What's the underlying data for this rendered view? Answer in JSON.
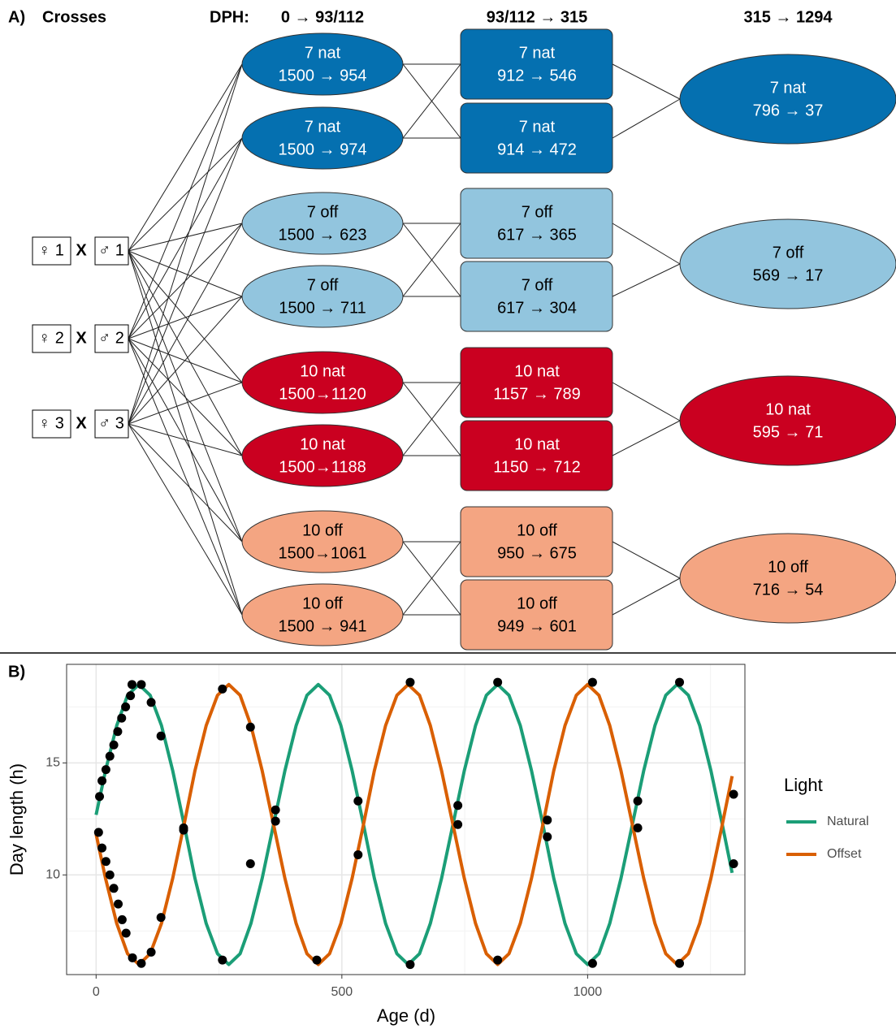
{
  "diagram": {
    "panel_label": "A)",
    "crosses_header": "Crosses",
    "dph_label": "DPH:",
    "stages": [
      "0 → 93/112",
      "93/112 → 315",
      "315 → 1294"
    ],
    "crosses": [
      {
        "female": "♀ 1",
        "x": "X",
        "male": "♂ 1"
      },
      {
        "female": "♀ 2",
        "x": "X",
        "male": "♂ 2"
      },
      {
        "female": "♀ 3",
        "x": "X",
        "male": "♂ 3"
      }
    ],
    "groups": [
      {
        "color": "#0570b0",
        "text_color": "#ffffff",
        "stage1": [
          {
            "label": "7 nat",
            "counts": "1500 → 954"
          },
          {
            "label": "7 nat",
            "counts": "1500 → 974"
          }
        ],
        "stage2": [
          {
            "label": "7 nat",
            "counts": "912 → 546"
          },
          {
            "label": "7 nat",
            "counts": "914 → 472"
          }
        ],
        "stage3": {
          "label": "7 nat",
          "counts": "796 → 37"
        }
      },
      {
        "color": "#92c5de",
        "text_color": "#000000",
        "stage1": [
          {
            "label": "7 off",
            "counts": "1500 → 623"
          },
          {
            "label": "7 off",
            "counts": "1500 → 711"
          }
        ],
        "stage2": [
          {
            "label": "7 off",
            "counts": "617 → 365"
          },
          {
            "label": "7 off",
            "counts": "617 → 304"
          }
        ],
        "stage3": {
          "label": "7 off",
          "counts": "569 → 17"
        }
      },
      {
        "color": "#ca0020",
        "text_color": "#ffffff",
        "stage1": [
          {
            "label": "10 nat",
            "counts": "1500→1120"
          },
          {
            "label": "10 nat",
            "counts": "1500→1188"
          }
        ],
        "stage2": [
          {
            "label": "10 nat",
            "counts": "1157 → 789"
          },
          {
            "label": "10 nat",
            "counts": "1150 → 712"
          }
        ],
        "stage3": {
          "label": "10 nat",
          "counts": "595 → 71"
        }
      },
      {
        "color": "#f4a582",
        "text_color": "#000000",
        "stage1": [
          {
            "label": "10 off",
            "counts": "1500→1061"
          },
          {
            "label": "10 off",
            "counts": "1500 → 941"
          }
        ],
        "stage2": [
          {
            "label": "10 off",
            "counts": "950 → 675"
          },
          {
            "label": "10 off",
            "counts": "949 → 601"
          }
        ],
        "stage3": {
          "label": "10 off",
          "counts": "716 → 54"
        }
      }
    ]
  },
  "chart_data": {
    "type": "line",
    "panel_label": "B)",
    "x_label": "Age (d)",
    "y_label": "Day length (h)",
    "legend_title": "Light",
    "legend": "right",
    "grid": true,
    "xlim": [
      -60,
      1320
    ],
    "ylim": [
      5.55,
      19.4
    ],
    "xticks": [
      0,
      500,
      1000
    ],
    "yticks": [
      10,
      15
    ],
    "x_minor_grid": [
      250,
      750,
      1250
    ],
    "y_minor_grid": [
      7.5,
      12.5,
      17.5
    ],
    "x": [
      0,
      19,
      42,
      64,
      87,
      110,
      133,
      156,
      179,
      201,
      224,
      247,
      270,
      293,
      315,
      338,
      361,
      384,
      407,
      429,
      452,
      475,
      498,
      521,
      544,
      566,
      589,
      612,
      635,
      658,
      680,
      703,
      726,
      749,
      772,
      794,
      817,
      840,
      863,
      886,
      909,
      931,
      954,
      977,
      1000,
      1023,
      1045,
      1068,
      1091,
      1114,
      1137,
      1159,
      1182,
      1205,
      1228,
      1251,
      1274,
      1294
    ],
    "series": [
      {
        "name": "Natural",
        "color": "#1b9e77",
        "values": [
          12.68,
          14.64,
          16.67,
          18.02,
          18.5,
          18.02,
          16.67,
          14.64,
          12.25,
          9.86,
          7.83,
          6.48,
          6.0,
          6.48,
          7.83,
          9.86,
          12.25,
          14.64,
          16.67,
          18.02,
          18.5,
          18.02,
          16.67,
          14.64,
          12.25,
          9.86,
          7.83,
          6.48,
          6.0,
          6.48,
          7.83,
          9.86,
          12.25,
          14.64,
          16.67,
          18.02,
          18.5,
          18.02,
          16.67,
          14.64,
          12.25,
          9.86,
          7.83,
          6.48,
          6.0,
          6.48,
          7.83,
          9.86,
          12.25,
          14.64,
          16.67,
          18.02,
          18.5,
          18.02,
          16.67,
          14.64,
          12.25,
          10.09
        ]
      },
      {
        "name": "Offset",
        "color": "#d95f02",
        "values": [
          11.82,
          9.86,
          7.83,
          6.48,
          6.0,
          6.48,
          7.83,
          9.86,
          12.25,
          14.64,
          16.67,
          18.02,
          18.5,
          18.02,
          16.67,
          14.64,
          12.25,
          9.86,
          7.83,
          6.48,
          6.0,
          6.48,
          7.83,
          9.86,
          12.25,
          14.64,
          16.67,
          18.02,
          18.5,
          18.02,
          16.67,
          14.64,
          12.25,
          9.86,
          7.83,
          6.48,
          6.0,
          6.48,
          7.83,
          9.86,
          12.25,
          14.64,
          16.67,
          18.02,
          18.5,
          18.02,
          16.67,
          14.64,
          12.25,
          9.86,
          7.83,
          6.48,
          6.0,
          6.48,
          7.83,
          9.86,
          12.25,
          14.41
        ]
      }
    ],
    "points": {
      "color": "#000000",
      "x": [
        7,
        12,
        20,
        28,
        36,
        44,
        52,
        60,
        70,
        73,
        92,
        112,
        132,
        178,
        257,
        5,
        12,
        20,
        28,
        36,
        45,
        53,
        61,
        74,
        92,
        112,
        132,
        178,
        257,
        314,
        314,
        365,
        365,
        449,
        533,
        533,
        639,
        639,
        736,
        736,
        817,
        817,
        918,
        918,
        1010,
        1010,
        1102,
        1102,
        1187,
        1187,
        1297,
        1297
      ],
      "values": [
        13.5,
        14.2,
        14.7,
        15.3,
        15.8,
        16.4,
        17.0,
        17.5,
        18.0,
        18.5,
        18.5,
        17.7,
        16.2,
        12.1,
        6.2,
        11.9,
        11.2,
        10.6,
        10.0,
        9.4,
        8.7,
        8.0,
        7.4,
        6.3,
        6.05,
        6.55,
        8.1,
        12.0,
        18.3,
        16.6,
        10.5,
        12.9,
        12.4,
        6.2,
        13.3,
        10.9,
        18.6,
        6.0,
        13.1,
        12.25,
        6.2,
        18.6,
        12.45,
        11.7,
        18.6,
        6.05,
        13.3,
        12.1,
        18.6,
        6.05,
        13.6,
        10.5
      ]
    }
  }
}
